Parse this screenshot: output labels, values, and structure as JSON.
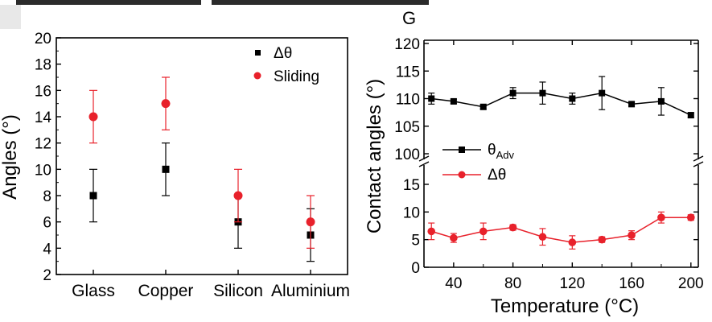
{
  "panel_label": "G",
  "colors": {
    "black_series": "#000000",
    "red_series": "#e8212b",
    "error_black": "#000000",
    "error_red": "#e8212b"
  },
  "chart_data": [
    {
      "type": "scatter",
      "categories": [
        "Glass",
        "Copper",
        "Silicon",
        "Aluminium"
      ],
      "ylabel": "Angles (°)",
      "xlabel": "",
      "ylim": [
        2,
        20
      ],
      "yticks": [
        2,
        4,
        6,
        8,
        10,
        12,
        14,
        16,
        18,
        20
      ],
      "legend_position": "top-right",
      "series": [
        {
          "name": "Δθ",
          "color": "#000000",
          "marker": "square",
          "values": [
            8,
            10,
            6,
            5
          ],
          "errors": [
            2,
            2,
            2,
            2
          ]
        },
        {
          "name": "Sliding",
          "color": "#e8212b",
          "marker": "circle",
          "values": [
            14,
            15,
            8,
            6
          ],
          "errors": [
            2,
            2,
            2,
            2
          ]
        }
      ]
    },
    {
      "type": "line",
      "xlabel": "Temperature (°C)",
      "ylabel": "Contact angles (°)",
      "xlim": [
        20,
        205
      ],
      "xticks": [
        40,
        80,
        120,
        160,
        200
      ],
      "broken_axis": true,
      "upper_ylim": [
        100,
        120
      ],
      "upper_yticks": [
        100,
        105,
        110,
        115,
        120
      ],
      "lower_ylim": [
        0,
        15
      ],
      "lower_yticks": [
        0,
        5,
        10,
        15
      ],
      "legend_position": "center",
      "x": [
        25,
        40,
        60,
        80,
        100,
        120,
        140,
        160,
        180,
        200
      ],
      "series": [
        {
          "name": "θ",
          "name_sub": "Adv",
          "color": "#000000",
          "marker": "square",
          "axis": "upper",
          "values": [
            110,
            109.5,
            108.5,
            111,
            111,
            110,
            111,
            109,
            109.5,
            107
          ],
          "errors": [
            1,
            0.4,
            0.4,
            1,
            2,
            1,
            3,
            0.4,
            2.5,
            0.4
          ]
        },
        {
          "name": "Δθ",
          "color": "#e8212b",
          "marker": "circle",
          "axis": "lower",
          "values": [
            6.5,
            5.3,
            6.5,
            7.2,
            5.5,
            4.5,
            5,
            5.8,
            9,
            9
          ],
          "errors": [
            1.5,
            0.8,
            1.5,
            0.5,
            1.5,
            1.2,
            0.5,
            0.8,
            1,
            0.5
          ]
        }
      ]
    }
  ]
}
